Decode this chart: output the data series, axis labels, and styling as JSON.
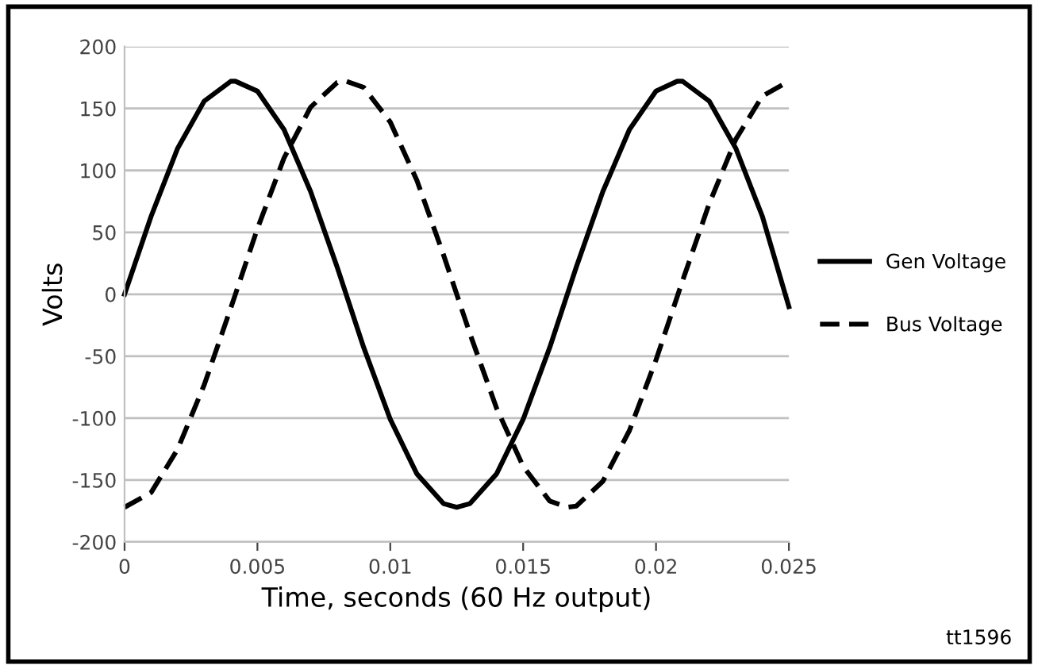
{
  "chart_data": {
    "type": "line",
    "xlabel": "Time, seconds (60 Hz output)",
    "ylabel": "Volts",
    "xlim": [
      0,
      0.025
    ],
    "xticks": [
      0,
      0.005,
      0.01,
      0.015,
      0.02,
      0.025
    ],
    "ylim": [
      -200,
      200
    ],
    "yticks": [
      -200,
      -150,
      -100,
      -50,
      0,
      50,
      100,
      150,
      200
    ],
    "grid": "y",
    "legend": "right",
    "marker": "none",
    "annotations": [
      "tt1596"
    ],
    "series": [
      {
        "name": "Gen Voltage",
        "color": "#000000",
        "line_style": "solid",
        "x": [
          0,
          0.001,
          0.002,
          0.003,
          0.004,
          0.00417,
          0.005,
          0.006,
          0.007,
          0.008,
          0.009,
          0.01,
          0.011,
          0.012,
          0.0125,
          0.013,
          0.014,
          0.015,
          0.016,
          0.017,
          0.018,
          0.019,
          0.02,
          0.0208,
          0.021,
          0.022,
          0.023,
          0.024,
          0.025
        ],
        "values": [
          0,
          63,
          118,
          156,
          172,
          172,
          164,
          133,
          83,
          22,
          -43,
          -101,
          -145,
          -169,
          -172,
          -169,
          -145,
          -101,
          -43,
          22,
          83,
          133,
          164,
          172,
          172,
          156,
          118,
          63,
          -10
        ]
      },
      {
        "name": "Bus Voltage",
        "color": "#000000",
        "line_style": "dashed",
        "x": [
          0,
          0.001,
          0.002,
          0.003,
          0.004,
          0.005,
          0.006,
          0.007,
          0.008,
          0.00833,
          0.009,
          0.01,
          0.011,
          0.012,
          0.013,
          0.014,
          0.015,
          0.016,
          0.01667,
          0.017,
          0.018,
          0.019,
          0.02,
          0.021,
          0.022,
          0.023,
          0.024,
          0.025
        ],
        "values": [
          -172,
          -160,
          -125,
          -73,
          -11,
          53,
          110,
          151,
          171,
          172,
          167,
          139,
          92,
          32,
          -32,
          -92,
          -139,
          -167,
          -172,
          -171,
          -151,
          -110,
          -53,
          11,
          73,
          125,
          160,
          172
        ]
      }
    ]
  }
}
